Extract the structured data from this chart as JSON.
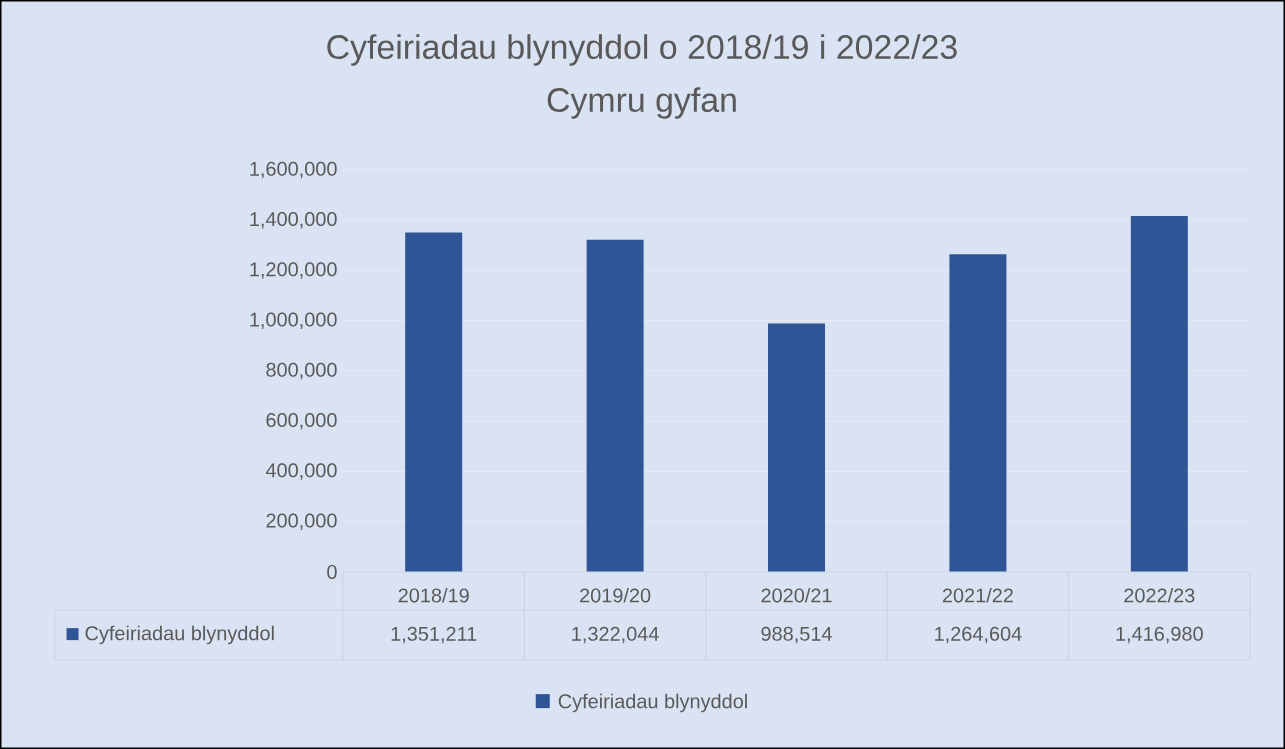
{
  "chart_data": {
    "type": "bar",
    "title": "Cyfeiriadau blynyddol o 2018/19 i 2022/23",
    "subtitle": "Cymru gyfan",
    "categories": [
      "2018/19",
      "2019/20",
      "2020/21",
      "2021/22",
      "2022/23"
    ],
    "series": [
      {
        "name": "Cyfeiriadau blynyddol",
        "color": "#2f5597",
        "values": [
          1351211,
          1322044,
          988514,
          1264604,
          1416980
        ],
        "value_labels": [
          "1,351,211",
          "1,322,044",
          "988,514",
          "1,264,604",
          "1,416,980"
        ]
      }
    ],
    "ylim": [
      0,
      1600000
    ],
    "yticks": [
      0,
      {
        "value": 200000,
        "label": "200,000"
      },
      {
        "value": 400000,
        "label": "400,000"
      },
      {
        "value": 600000,
        "label": "600,000"
      },
      {
        "value": 800000,
        "label": "800,000"
      },
      {
        "value": 1000000,
        "label": "1,000,000"
      },
      {
        "value": 1200000,
        "label": "1,200,000"
      },
      {
        "value": 1400000,
        "label": "1,400,000"
      },
      {
        "value": 1600000,
        "label": "1,600,000"
      }
    ],
    "grid": "y",
    "legend": "bottom"
  }
}
